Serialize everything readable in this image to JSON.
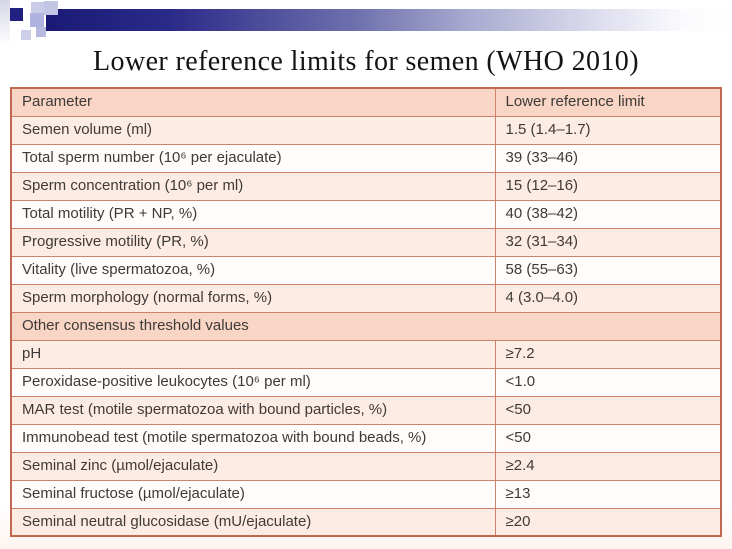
{
  "slide": {
    "title": "Lower reference limits for semen (WHO 2010)"
  },
  "table": {
    "columns": [
      "Parameter",
      "Lower reference limit"
    ],
    "rows": [
      {
        "type": "data",
        "parameter": "Semen volume (ml)",
        "value": "1.5 (1.4–1.7)"
      },
      {
        "type": "data",
        "parameter": "Total sperm number (10⁶ per ejaculate)",
        "value": "39 (33–46)"
      },
      {
        "type": "data",
        "parameter": "Sperm concentration (10⁶ per ml)",
        "value": "15 (12–16)"
      },
      {
        "type": "data",
        "parameter": "Total motility (PR + NP, %)",
        "value": "40 (38–42)"
      },
      {
        "type": "data",
        "parameter": "Progressive motility (PR, %)",
        "value": "32 (31–34)"
      },
      {
        "type": "data",
        "parameter": "Vitality (live spermatozoa, %)",
        "value": "58 (55–63)"
      },
      {
        "type": "data",
        "parameter": "Sperm morphology (normal forms, %)",
        "value": "4 (3.0–4.0)"
      },
      {
        "type": "section",
        "label": "Other consensus threshold values"
      },
      {
        "type": "data",
        "parameter": "pH",
        "value": "≥7.2"
      },
      {
        "type": "data",
        "parameter": "Peroxidase-positive leukocytes (10⁶ per ml)",
        "value": "<1.0"
      },
      {
        "type": "data",
        "parameter": "MAR test (motile spermatozoa with bound particles, %)",
        "value": "<50"
      },
      {
        "type": "data",
        "parameter": "Immunobead test (motile spermatozoa with bound beads, %)",
        "value": "<50"
      },
      {
        "type": "data",
        "parameter": "Seminal zinc (µmol/ejaculate)",
        "value": "≥2.4"
      },
      {
        "type": "data",
        "parameter": "Seminal fructose (µmol/ejaculate)",
        "value": "≥13"
      },
      {
        "type": "data",
        "parameter": "Seminal neutral glucosidase (mU/ejaculate)",
        "value": "≥20"
      }
    ]
  },
  "colors": {
    "accent_navy": "#22228a",
    "lavender": "#b0b3dd",
    "table_outer_border": "#c2684e",
    "table_inner_border": "#cd836b",
    "header_row_bg": "#f9d5c5",
    "tint_row_bg": "#fdece4",
    "plain_row_bg": "#fffdfc",
    "text": "#3e3a38"
  }
}
